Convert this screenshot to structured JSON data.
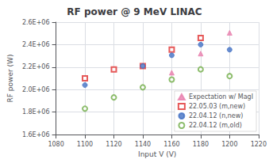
{
  "chart_data": {
    "type": "scatter",
    "title": "RF power @ 9 MeV LINAC",
    "xlabel": "Input V (V)",
    "ylabel": "RF power (W)",
    "xlim": [
      1080,
      1220
    ],
    "ylim": [
      1600000,
      2600000
    ],
    "xticks": [
      1080,
      1100,
      1120,
      1140,
      1160,
      1180,
      1200,
      1220
    ],
    "yticks": [
      {
        "value": 1600000,
        "label": "1.6E+06"
      },
      {
        "value": 1800000,
        "label": "1.8E+06"
      },
      {
        "value": 2000000,
        "label": "2.0E+06"
      },
      {
        "value": 2200000,
        "label": "2.2E+06"
      },
      {
        "value": 2400000,
        "label": "2.4E+06"
      },
      {
        "value": 2600000,
        "label": "2.6E+06"
      }
    ],
    "grid": true,
    "legend": "lower right",
    "series": [
      {
        "name": "Expectation w/ MagI",
        "color": "#E87EAD",
        "marker": "triangle",
        "x": [
          1160,
          1180,
          1200
        ],
        "values": [
          2150000,
          2320000,
          2505000
        ]
      },
      {
        "name": "22.05.03 (m,new)",
        "color": "#E03030",
        "marker": "open-square",
        "x": [
          1100,
          1120,
          1140,
          1160,
          1180
        ],
        "values": [
          2100000,
          2180000,
          2210000,
          2355000,
          2460000
        ]
      },
      {
        "name": "22.04.12 (n,new)",
        "color": "#4472C4",
        "marker": "circle",
        "x": [
          1100,
          1140,
          1160,
          1180,
          1200
        ],
        "values": [
          2040000,
          2210000,
          2305000,
          2400000,
          2355000
        ]
      },
      {
        "name": "22.04.12 (m,old)",
        "color": "#70AD47",
        "marker": "open-circle",
        "x": [
          1100,
          1120,
          1140,
          1160,
          1180,
          1200
        ],
        "values": [
          1830000,
          1930000,
          2020000,
          2090000,
          2180000,
          2120000
        ]
      }
    ]
  }
}
